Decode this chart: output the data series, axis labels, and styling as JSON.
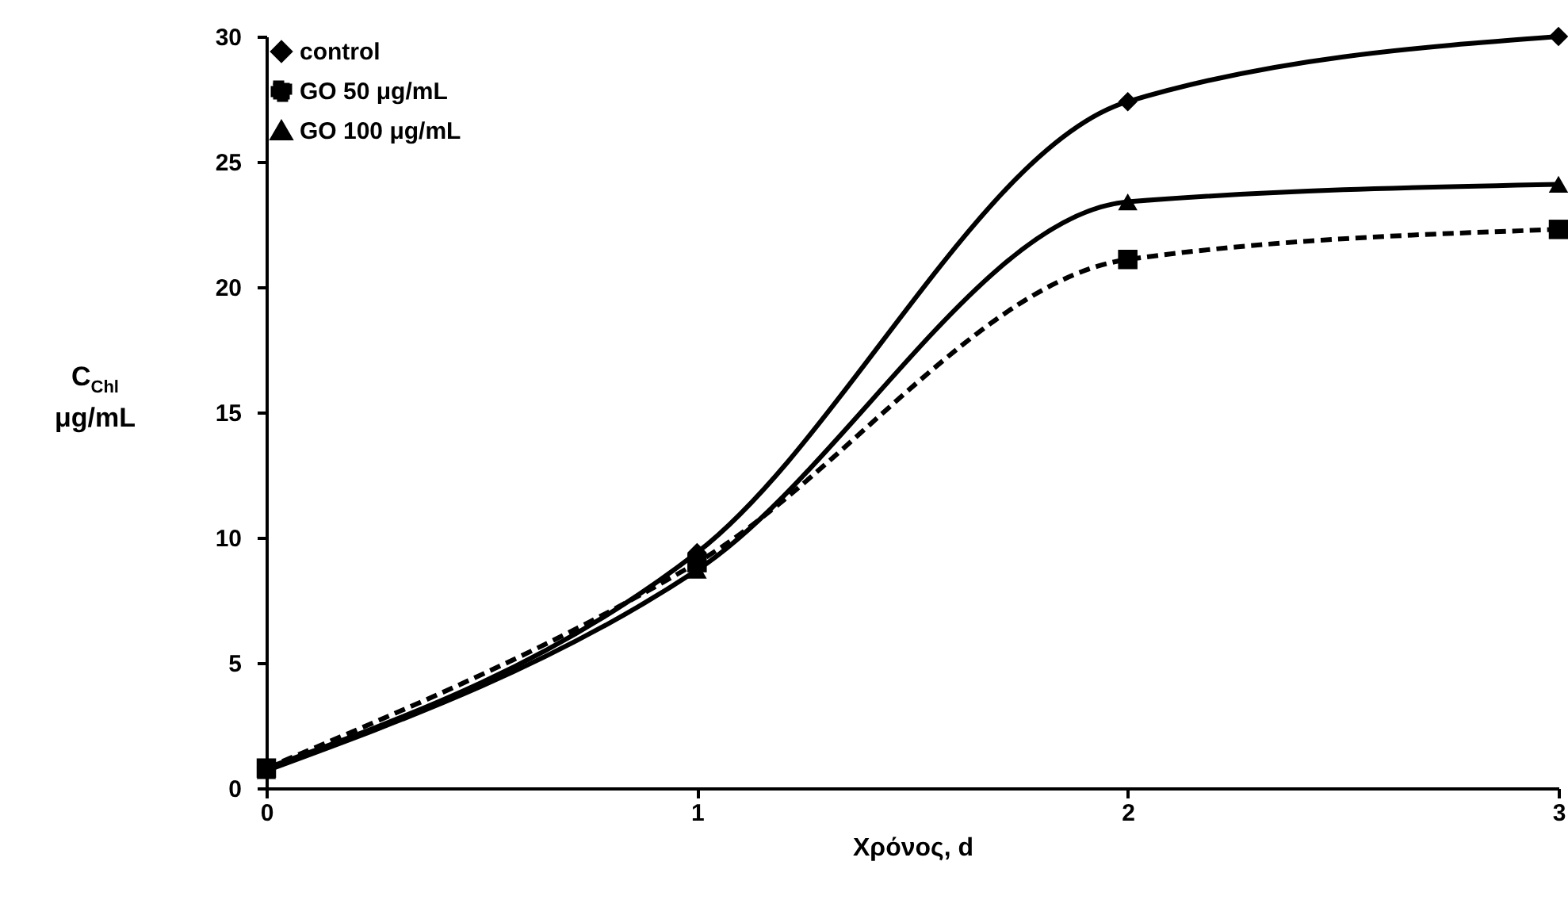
{
  "chart_data": {
    "type": "line",
    "xlabel": "Χρόνος, d",
    "ylabel": "C$_{Chl}$ μg/mL",
    "x": [
      0,
      1,
      2,
      3
    ],
    "xlim": [
      0,
      3
    ],
    "xticks": [
      0,
      1,
      2,
      3
    ],
    "ylim": [
      0,
      30
    ],
    "yticks": [
      0,
      5,
      10,
      15,
      20,
      25,
      30
    ],
    "grid": false,
    "legend": "top left",
    "series": [
      {
        "name": "control",
        "color": "#000000",
        "marker": "diamond",
        "line_style": "solid",
        "values": [
          0.8,
          9.4,
          27.4,
          30.0
        ]
      },
      {
        "name": "GO 50 μg/mL",
        "color": "#000000",
        "marker": "square",
        "line_style": "dashed",
        "values": [
          0.8,
          9.0,
          21.1,
          22.3
        ]
      },
      {
        "name": "GO 100 μg/mL",
        "color": "#000000",
        "marker": "triangle",
        "line_style": "solid",
        "values": [
          0.7,
          8.7,
          23.4,
          24.1
        ]
      }
    ]
  }
}
